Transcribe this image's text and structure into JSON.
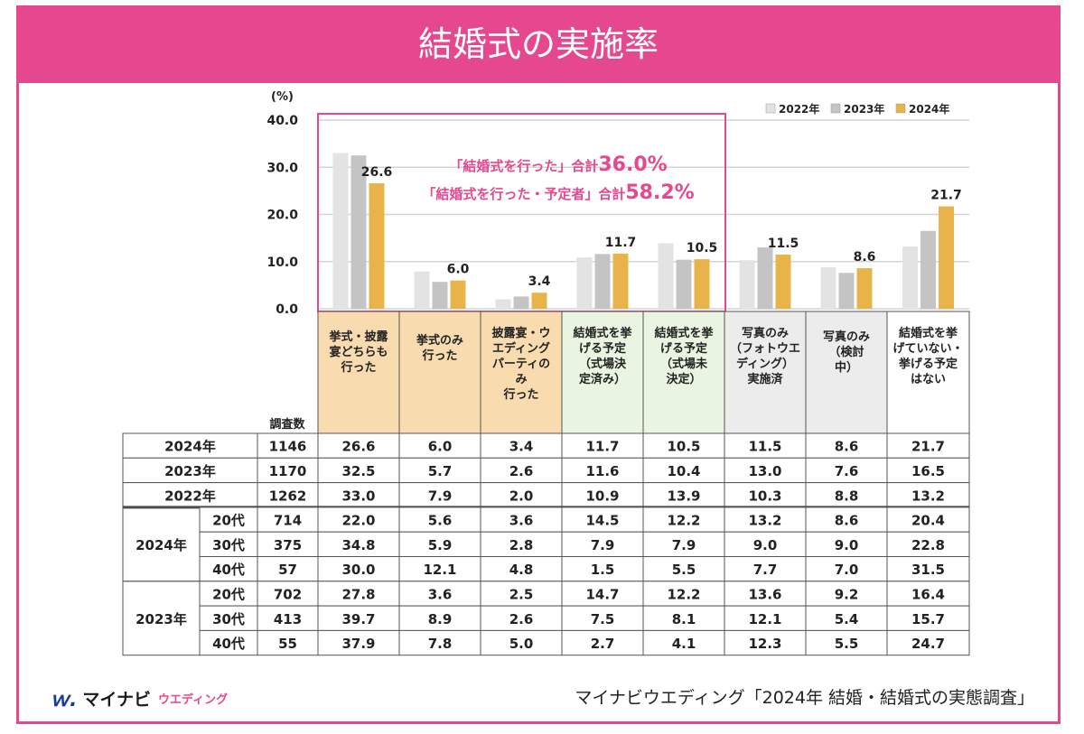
{
  "page": {
    "title": "結婚式の実施率"
  },
  "chart_data": {
    "type": "bar",
    "y_unit": "(%)",
    "ylim": [
      0,
      40
    ],
    "y_ticks": [
      "0.0",
      "10.0",
      "20.0",
      "30.0",
      "40.0"
    ],
    "grid": true,
    "legend_position": "top-right",
    "categories": [
      "挙式・披露宴どちらも行った",
      "挙式のみ行った",
      "披露宴・ウエディングパーティのみ行った",
      "結婚式を挙げる予定（式場決定済み）",
      "結婚式を挙げる予定（式場未決定）",
      "写真のみ（フォトウエディング）実施済",
      "写真のみ（検討中）",
      "結婚式を挙げていない・挙げる予定はない"
    ],
    "category_lines": [
      [
        "挙式・披露",
        "宴どちらも",
        "行った"
      ],
      [
        "挙式のみ",
        "行った"
      ],
      [
        "披露宴・ウ",
        "エディング",
        "パーティの",
        "み",
        "行った"
      ],
      [
        "結婚式を挙",
        "げる予定",
        "（式場決",
        "定済み）"
      ],
      [
        "結婚式を挙",
        "げる予定",
        "（式場未",
        "決定）"
      ],
      [
        "写真のみ",
        "（フォトウエ",
        "ディング）",
        "実施済"
      ],
      [
        "写真のみ",
        "（検討",
        "中）"
      ],
      [
        "結婚式を挙",
        "げていない・",
        "挙げる予定",
        "はない"
      ]
    ],
    "series": [
      {
        "name": "2022年",
        "color": "#e3e3e3",
        "values": [
          33.0,
          7.9,
          2.0,
          10.9,
          13.9,
          10.3,
          8.8,
          13.2
        ]
      },
      {
        "name": "2023年",
        "color": "#c4c4c4",
        "values": [
          32.5,
          5.7,
          2.6,
          11.6,
          10.4,
          13.0,
          7.6,
          16.5
        ]
      },
      {
        "name": "2024年",
        "color": "#e8b44a",
        "values": [
          26.6,
          6.0,
          3.4,
          11.7,
          10.5,
          11.5,
          8.6,
          21.7
        ]
      }
    ],
    "annotations": {
      "line1_label": "「結婚式を行った」合計",
      "line1_value": "36.0%",
      "line2_label": "「結婚式を行った・予定者」合計",
      "line2_value": "58.2%"
    },
    "table": {
      "count_header": "調査数",
      "total_rows": [
        {
          "label": "2024年",
          "n": "1146",
          "values": [
            "26.6",
            "6.0",
            "3.4",
            "11.7",
            "10.5",
            "11.5",
            "8.6",
            "21.7"
          ]
        },
        {
          "label": "2023年",
          "n": "1170",
          "values": [
            "32.5",
            "5.7",
            "2.6",
            "11.6",
            "10.4",
            "13.0",
            "7.6",
            "16.5"
          ]
        },
        {
          "label": "2022年",
          "n": "1262",
          "values": [
            "33.0",
            "7.9",
            "2.0",
            "10.9",
            "13.9",
            "10.3",
            "8.8",
            "13.2"
          ]
        }
      ],
      "groups": [
        {
          "label": "2024年",
          "rows": [
            {
              "age": "20代",
              "n": "714",
              "values": [
                "22.0",
                "5.6",
                "3.6",
                "14.5",
                "12.2",
                "13.2",
                "8.6",
                "20.4"
              ]
            },
            {
              "age": "30代",
              "n": "375",
              "values": [
                "34.8",
                "5.9",
                "2.8",
                "7.9",
                "7.9",
                "9.0",
                "9.0",
                "22.8"
              ]
            },
            {
              "age": "40代",
              "n": "57",
              "values": [
                "30.0",
                "12.1",
                "4.8",
                "1.5",
                "5.5",
                "7.7",
                "7.0",
                "31.5"
              ]
            }
          ]
        },
        {
          "label": "2023年",
          "rows": [
            {
              "age": "20代",
              "n": "702",
              "values": [
                "27.8",
                "3.6",
                "2.5",
                "14.7",
                "12.2",
                "13.6",
                "9.2",
                "16.4"
              ]
            },
            {
              "age": "30代",
              "n": "413",
              "values": [
                "39.7",
                "8.9",
                "2.6",
                "7.5",
                "8.1",
                "12.1",
                "5.4",
                "15.7"
              ]
            },
            {
              "age": "40代",
              "n": "55",
              "values": [
                "37.9",
                "7.8",
                "5.0",
                "2.7",
                "4.1",
                "12.3",
                "5.5",
                "24.7"
              ]
            }
          ]
        }
      ]
    }
  },
  "footer": {
    "logo_mark": "ｗ.",
    "logo_main": "マイナビ",
    "logo_sub": "ウエディング",
    "source": "マイナビウエディング「2024年 結婚・結婚式の実態調査」"
  },
  "colors": {
    "accent": "#e5488f",
    "header_orange": "#f8dcb0",
    "header_green": "#e9f5e1",
    "header_gray": "#ececec"
  }
}
